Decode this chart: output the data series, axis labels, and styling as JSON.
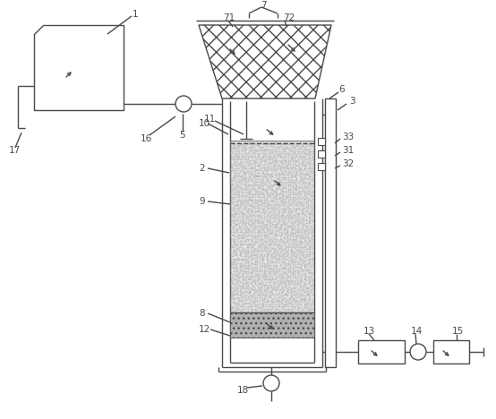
{
  "bg_color": "#ffffff",
  "line_color": "#4a4a4a",
  "lw": 1.0,
  "label_fontsize": 7.5,
  "figsize": [
    5.54,
    4.68
  ],
  "dpi": 100
}
